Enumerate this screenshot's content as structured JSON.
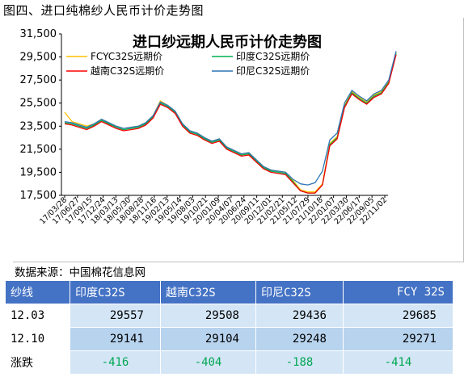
{
  "page": {
    "figure_title": "图四、进口纯棉纱人民币计价走势图",
    "source_label": "数据来源：中国棉花信息网"
  },
  "chart_data": {
    "type": "line",
    "title": "进口纱远期人民币计价走势图",
    "ylim": [
      17500,
      31500
    ],
    "yticks": [
      "17,500",
      "19,500",
      "21,500",
      "23,500",
      "25,500",
      "27,500",
      "29,500",
      "31,500"
    ],
    "ytick_values": [
      17500,
      19500,
      21500,
      23500,
      25500,
      27500,
      29500,
      31500
    ],
    "xticks": [
      "17/03/28",
      "17/06/27",
      "17/09/15",
      "17/12/24",
      "18/03/13",
      "18/05/30",
      "18/08/28",
      "18/11/16",
      "19/02/13",
      "19/05/14",
      "19/08/03",
      "19/10/21",
      "20/01/09",
      "20/04/07",
      "20/06/24",
      "20/09/11",
      "20/12/01",
      "21/02/21",
      "21/05/12",
      "21/07/29",
      "21/10/18",
      "22/01/07",
      "22/03/30",
      "22/06/17",
      "22/09/05",
      "22/11/02"
    ],
    "grid": false,
    "legend_position": "top",
    "series": [
      {
        "name": "FCYC32S远期价",
        "color": "#ffc000",
        "values": [
          24700,
          23900,
          23700,
          23500,
          23700,
          24100,
          23800,
          23500,
          23300,
          23400,
          23500,
          23800,
          24400,
          25700,
          25300,
          24800,
          23700,
          23100,
          22900,
          22500,
          22200,
          22400,
          21700,
          21400,
          21100,
          21200,
          20600,
          20000,
          19700,
          19600,
          19500,
          18800,
          18000,
          17800,
          17800,
          18500,
          22000,
          22600,
          25300,
          26500,
          26000,
          25600,
          26200,
          26500,
          27400,
          29950
        ]
      },
      {
        "name": "印度C32S远期价",
        "color": "#00b050",
        "values": [
          23800,
          23700,
          23500,
          23300,
          23600,
          24000,
          23700,
          23400,
          23200,
          23300,
          23400,
          23700,
          24300,
          25500,
          25200,
          24700,
          23600,
          23000,
          22800,
          22400,
          22100,
          22300,
          21600,
          21300,
          21000,
          21100,
          20500,
          19900,
          19600,
          19500,
          19400,
          18700,
          17900,
          17700,
          17700,
          18400,
          21900,
          22500,
          25200,
          26400,
          25900,
          25500,
          26100,
          26400,
          27300,
          29800
        ]
      },
      {
        "name": "越南C32S远期价",
        "color": "#ff0000",
        "values": [
          23700,
          23600,
          23400,
          23200,
          23500,
          23900,
          23600,
          23300,
          23100,
          23200,
          23300,
          23600,
          24200,
          25400,
          25100,
          24600,
          23500,
          22900,
          22700,
          22300,
          22000,
          22200,
          21500,
          21200,
          20900,
          21000,
          20400,
          19800,
          19500,
          19400,
          19300,
          18600,
          17900,
          17700,
          17700,
          18400,
          21800,
          22400,
          25100,
          26300,
          25800,
          25400,
          26000,
          26300,
          27200,
          29700
        ]
      },
      {
        "name": "印尼C32S远期价",
        "color": "#2e75b6",
        "values": [
          23900,
          23800,
          23600,
          23400,
          23700,
          24100,
          23800,
          23500,
          23300,
          23400,
          23500,
          23800,
          24400,
          25600,
          25300,
          24800,
          23700,
          23100,
          22900,
          22500,
          22200,
          22400,
          21700,
          21400,
          21100,
          21200,
          20600,
          20000,
          19700,
          19600,
          19500,
          18900,
          18500,
          18400,
          18600,
          19600,
          22300,
          22900,
          25500,
          26600,
          26100,
          25700,
          26300,
          26600,
          27500,
          30000
        ]
      }
    ]
  },
  "table": {
    "headers": [
      "纱线",
      "印度C32S",
      "越南C32S",
      "印尼C32S",
      "FCY 32S"
    ],
    "rows": [
      {
        "label": "12.03",
        "values": [
          "29557",
          "29508",
          "29436",
          "29685"
        ]
      },
      {
        "label": "12.10",
        "values": [
          "29141",
          "29104",
          "29248",
          "29271"
        ]
      },
      {
        "label": "涨跌",
        "values": [
          "-416",
          "-404",
          "-188",
          "-414"
        ]
      }
    ]
  }
}
